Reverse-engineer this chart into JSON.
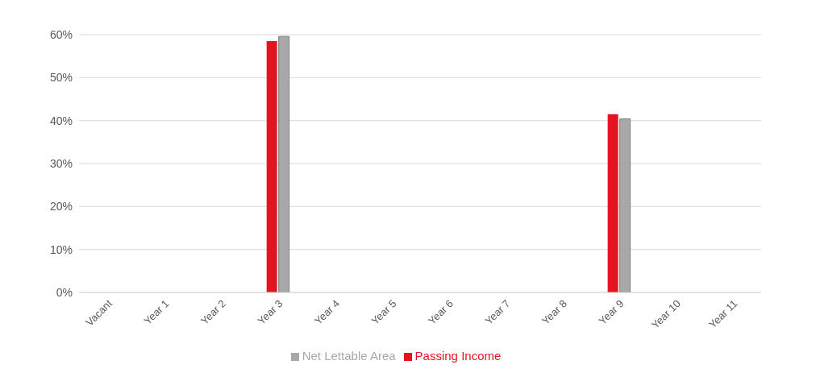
{
  "chart_data": {
    "type": "bar",
    "categories": [
      "Vacant",
      "Year 1",
      "Year 2",
      "Year 3",
      "Year 4",
      "Year 5",
      "Year 6",
      "Year 7",
      "Year 8",
      "Year 9",
      "Year 10",
      "Year 11"
    ],
    "series": [
      {
        "name": "Passing Income",
        "color": "#e3141f",
        "values": [
          0,
          0,
          0,
          58.5,
          0,
          0,
          0,
          0,
          0,
          41.5,
          0,
          0
        ]
      },
      {
        "name": "Net Lettable Area",
        "color": "#a8a8a8",
        "values": [
          0,
          0,
          0,
          59.6,
          0,
          0,
          0,
          0,
          0,
          40.4,
          0,
          0
        ]
      }
    ],
    "ylim": [
      0,
      60
    ],
    "yticks": [
      {
        "value": 0,
        "label": "0%"
      },
      {
        "value": 10,
        "label": "10%"
      },
      {
        "value": 20,
        "label": "20%"
      },
      {
        "value": 30,
        "label": "30%"
      },
      {
        "value": 40,
        "label": "40%"
      },
      {
        "value": 50,
        "label": "50%"
      },
      {
        "value": 60,
        "label": "60%"
      }
    ],
    "grid": "y",
    "legend": "bottom"
  }
}
